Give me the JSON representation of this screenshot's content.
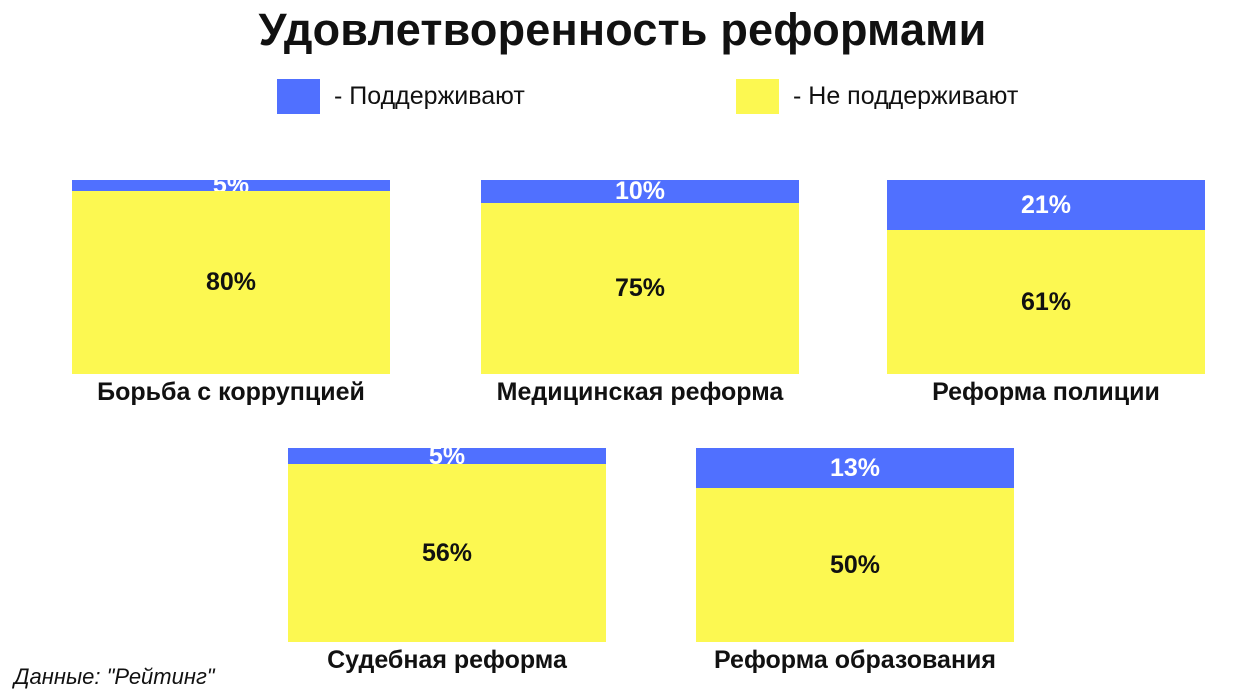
{
  "chart_data": {
    "type": "bar",
    "title": "Удовлетворенность реформами",
    "source": "Данные: \"Рейтинг\"",
    "legend": [
      {
        "label": "- Поддерживают",
        "color": "#5070FF"
      },
      {
        "label": "- Не поддерживают",
        "color": "#FCF851"
      }
    ],
    "categories": [
      "Борьба с коррупцией",
      "Медицинская реформа",
      "Реформа полиции",
      "Судебная реформа",
      "Реформа образования"
    ],
    "series": [
      {
        "key": "support",
        "values": [
          5,
          10,
          21,
          5,
          13
        ],
        "labels": [
          "5%",
          "10%",
          "21%",
          "5%",
          "13%"
        ]
      },
      {
        "key": "oppose",
        "values": [
          80,
          75,
          61,
          56,
          50
        ],
        "labels": [
          "80%",
          "75%",
          "61%",
          "56%",
          "50%"
        ]
      }
    ]
  }
}
